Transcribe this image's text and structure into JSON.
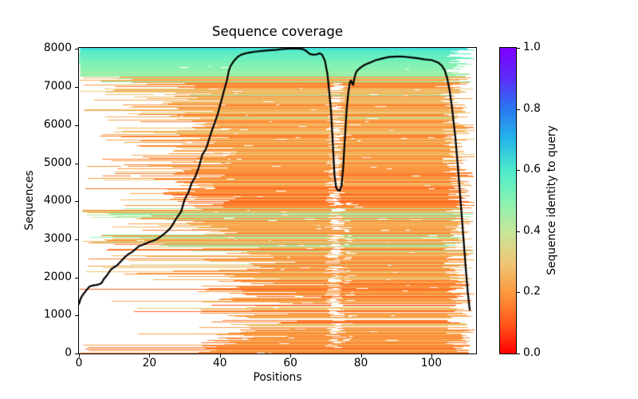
{
  "title": "Sequence coverage",
  "axes": {
    "xlabel": "Positions",
    "ylabel": "Sequences",
    "x_ticks": [
      0,
      20,
      40,
      60,
      80,
      100
    ],
    "y_ticks": [
      0,
      1000,
      2000,
      3000,
      4000,
      5000,
      6000,
      7000,
      8000
    ],
    "xlim": [
      0,
      112.7
    ],
    "ylim": [
      0,
      8030
    ]
  },
  "colorbar": {
    "label": "Sequence identity to query",
    "tick_labels": [
      "0.0",
      "0.2",
      "0.4",
      "0.6",
      "0.8",
      "1.0"
    ],
    "tick_values": [
      0.0,
      0.2,
      0.4,
      0.6,
      0.8,
      1.0
    ],
    "stops": [
      [
        0.0,
        "#ff0000"
      ],
      [
        0.1,
        "#ff5a1c"
      ],
      [
        0.2,
        "#fc9a3f"
      ],
      [
        0.3,
        "#eec878"
      ],
      [
        0.4,
        "#c6e79b"
      ],
      [
        0.5,
        "#86f3b2"
      ],
      [
        0.6,
        "#4ceacd"
      ],
      [
        0.7,
        "#24b6e9"
      ],
      [
        0.8,
        "#2a78f2"
      ],
      [
        0.9,
        "#5c2ef8"
      ],
      [
        1.0,
        "#7d00ff"
      ]
    ]
  },
  "chart_data": {
    "type": "line+heatmap",
    "description": "MSA coverage plot: horizontal sequence lines colored by identity to query, black line = number of sequences covering each position",
    "line_color": "#000000",
    "line_width": 2.2,
    "coverage_line": [
      [
        0,
        1300
      ],
      [
        0.5,
        1450
      ],
      [
        1,
        1530
      ],
      [
        2,
        1650
      ],
      [
        3,
        1760
      ],
      [
        4,
        1790
      ],
      [
        5,
        1800
      ],
      [
        6,
        1830
      ],
      [
        6.5,
        1860
      ],
      [
        7,
        1950
      ],
      [
        8,
        2060
      ],
      [
        9,
        2200
      ],
      [
        10,
        2270
      ],
      [
        11,
        2330
      ],
      [
        12,
        2430
      ],
      [
        13,
        2530
      ],
      [
        14,
        2610
      ],
      [
        15,
        2660
      ],
      [
        16,
        2740
      ],
      [
        17,
        2820
      ],
      [
        18,
        2850
      ],
      [
        19,
        2890
      ],
      [
        20,
        2930
      ],
      [
        21,
        2960
      ],
      [
        22,
        3000
      ],
      [
        23,
        3060
      ],
      [
        24,
        3130
      ],
      [
        25,
        3210
      ],
      [
        26,
        3300
      ],
      [
        27,
        3450
      ],
      [
        28,
        3600
      ],
      [
        29,
        3730
      ],
      [
        30,
        4050
      ],
      [
        31,
        4220
      ],
      [
        32,
        4480
      ],
      [
        33,
        4640
      ],
      [
        34,
        4890
      ],
      [
        35,
        5220
      ],
      [
        36,
        5370
      ],
      [
        36.5,
        5500
      ],
      [
        37,
        5650
      ],
      [
        37.5,
        5800
      ],
      [
        38,
        5930
      ],
      [
        38.5,
        6050
      ],
      [
        39,
        6190
      ],
      [
        39.5,
        6330
      ],
      [
        40,
        6500
      ],
      [
        41,
        6850
      ],
      [
        42,
        7180
      ],
      [
        42.5,
        7420
      ],
      [
        43,
        7550
      ],
      [
        44,
        7690
      ],
      [
        45,
        7790
      ],
      [
        46,
        7850
      ],
      [
        47,
        7880
      ],
      [
        48,
        7900
      ],
      [
        50,
        7930
      ],
      [
        53,
        7960
      ],
      [
        56,
        7980
      ],
      [
        58,
        8000
      ],
      [
        60,
        8010
      ],
      [
        62,
        8010
      ],
      [
        63.5,
        8000
      ],
      [
        64.5,
        7950
      ],
      [
        65.5,
        7870
      ],
      [
        66.5,
        7850
      ],
      [
        67.5,
        7860
      ],
      [
        68.3,
        7890
      ],
      [
        69,
        7850
      ],
      [
        69.8,
        7690
      ],
      [
        70.5,
        7350
      ],
      [
        71,
        6900
      ],
      [
        71.5,
        6400
      ],
      [
        72,
        5600
      ],
      [
        72.5,
        4700
      ],
      [
        73,
        4350
      ],
      [
        73.5,
        4290
      ],
      [
        74,
        4280
      ],
      [
        74.5,
        4400
      ],
      [
        75,
        4900
      ],
      [
        75.3,
        5400
      ],
      [
        75.7,
        6020
      ],
      [
        76,
        6450
      ],
      [
        76.5,
        6900
      ],
      [
        76.9,
        7130
      ],
      [
        77.2,
        7170
      ],
      [
        77.5,
        7100
      ],
      [
        77.8,
        7060
      ],
      [
        78.2,
        7250
      ],
      [
        78.6,
        7380
      ],
      [
        79,
        7440
      ],
      [
        80,
        7520
      ],
      [
        81,
        7580
      ],
      [
        82,
        7620
      ],
      [
        83,
        7660
      ],
      [
        84,
        7700
      ],
      [
        86,
        7750
      ],
      [
        88,
        7790
      ],
      [
        90,
        7800
      ],
      [
        92,
        7800
      ],
      [
        94,
        7780
      ],
      [
        96,
        7760
      ],
      [
        98,
        7730
      ],
      [
        100,
        7710
      ],
      [
        101,
        7680
      ],
      [
        102,
        7640
      ],
      [
        103,
        7560
      ],
      [
        103.8,
        7440
      ],
      [
        104.5,
        7230
      ],
      [
        105.2,
        6900
      ],
      [
        105.8,
        6500
      ],
      [
        106.3,
        6100
      ],
      [
        106.8,
        5700
      ],
      [
        107.3,
        5150
      ],
      [
        107.8,
        4600
      ],
      [
        108.3,
        4000
      ],
      [
        108.8,
        3400
      ],
      [
        109.3,
        2800
      ],
      [
        109.8,
        2200
      ],
      [
        110.3,
        1650
      ],
      [
        110.7,
        1300
      ],
      [
        110.9,
        1150
      ]
    ],
    "bands": [
      {
        "seq": [
          0,
          230
        ],
        "density": 1.0,
        "starts": [
          [
            0.25,
            0,
            4
          ],
          [
            0.75,
            33,
            40
          ]
        ],
        "identity": [
          [
            0.6,
            0.1,
            0.18
          ],
          [
            0.4,
            0.18,
            0.24
          ]
        ],
        "end": [
          106,
          112.5
        ],
        "gap_prob": 0.25
      },
      {
        "seq": [
          230,
          1900
        ],
        "density": 0.92,
        "starts": [
          [
            0.12,
            0,
            25
          ],
          [
            0.55,
            33,
            50
          ],
          [
            0.33,
            45,
            70
          ]
        ],
        "identity": [
          [
            0.75,
            0.14,
            0.26
          ],
          [
            0.2,
            0.26,
            0.33
          ],
          [
            0.05,
            0.08,
            0.13
          ]
        ],
        "end": [
          104,
          112.5
        ],
        "gap_prob": 0.35
      },
      {
        "seq": [
          1900,
          2800
        ],
        "density": 0.95,
        "starts": [
          [
            0.3,
            0,
            28
          ],
          [
            0.5,
            25,
            50
          ],
          [
            0.2,
            45,
            65
          ]
        ],
        "identity": [
          [
            0.7,
            0.14,
            0.26
          ],
          [
            0.25,
            0.26,
            0.34
          ],
          [
            0.05,
            0.36,
            0.46
          ]
        ],
        "end": [
          103,
          112.5
        ],
        "gap_prob": 0.35
      },
      {
        "seq": [
          2800,
          3070
        ],
        "density": 1.0,
        "starts": [
          [
            0.55,
            0,
            12
          ],
          [
            0.45,
            10,
            40
          ]
        ],
        "identity": [
          [
            0.45,
            0.38,
            0.5
          ],
          [
            0.55,
            0.15,
            0.28
          ]
        ],
        "end": [
          103,
          112.5
        ],
        "gap_prob": 0.3
      },
      {
        "seq": [
          3070,
          3560
        ],
        "density": 1.0,
        "starts": [
          [
            0.35,
            0,
            18
          ],
          [
            0.65,
            15,
            45
          ]
        ],
        "identity": [
          [
            0.82,
            0.15,
            0.28
          ],
          [
            0.18,
            0.36,
            0.48
          ]
        ],
        "end": [
          104,
          112.5
        ],
        "gap_prob": 0.3
      },
      {
        "seq": [
          3560,
          3820
        ],
        "density": 1.0,
        "starts": [
          [
            0.6,
            0,
            12
          ],
          [
            0.4,
            10,
            40
          ]
        ],
        "identity": [
          [
            0.55,
            0.4,
            0.52
          ],
          [
            0.45,
            0.16,
            0.3
          ]
        ],
        "end": [
          104,
          112.5
        ],
        "gap_prob": 0.3
      },
      {
        "seq": [
          3820,
          4400
        ],
        "density": 1.0,
        "starts": [
          [
            0.2,
            0,
            18
          ],
          [
            0.8,
            22,
            45
          ]
        ],
        "identity": [
          [
            0.55,
            0.1,
            0.2
          ],
          [
            0.45,
            0.18,
            0.28
          ]
        ],
        "end": [
          104,
          112.5
        ],
        "gap_prob": 0.35
      },
      {
        "seq": [
          4400,
          6100
        ],
        "density": 1.0,
        "starts": [
          [
            0.3,
            2,
            30
          ],
          [
            0.7,
            25,
            45
          ]
        ],
        "identity": [
          [
            0.7,
            0.14,
            0.26
          ],
          [
            0.3,
            0.24,
            0.33
          ]
        ],
        "end": [
          103,
          112.5
        ],
        "gap_prob": 0.4
      },
      {
        "seq": [
          6100,
          6900
        ],
        "density": 1.0,
        "starts": [
          [
            0.55,
            0,
            28
          ],
          [
            0.45,
            25,
            42
          ]
        ],
        "identity": [
          [
            0.65,
            0.15,
            0.27
          ],
          [
            0.3,
            0.26,
            0.33
          ],
          [
            0.05,
            0.38,
            0.48
          ]
        ],
        "end": [
          102,
          112.5
        ],
        "gap_prob": 0.35
      },
      {
        "seq": [
          6900,
          7130
        ],
        "density": 1.0,
        "starts": [
          [
            0.7,
            0,
            30
          ],
          [
            0.3,
            28,
            38
          ]
        ],
        "identity": [
          [
            0.85,
            0.16,
            0.28
          ],
          [
            0.15,
            0.28,
            0.34
          ]
        ],
        "end": [
          101,
          112.5
        ],
        "gap_prob": 0.3
      },
      {
        "seq": [
          7130,
          7270
        ],
        "density": 1.0,
        "starts": [
          [
            0.8,
            0,
            10
          ],
          [
            0.2,
            8,
            25
          ]
        ],
        "identity": [
          [
            0.5,
            0.4,
            0.5
          ],
          [
            0.5,
            0.18,
            0.3
          ]
        ],
        "end": [
          102,
          112.5
        ],
        "gap_prob": 0.2
      },
      {
        "seq": [
          7270,
          7960
        ],
        "density": 1.0,
        "starts": [
          [
            1,
            0,
            0.5
          ]
        ],
        "identity_gradient": {
          "range": [
            0.45,
            0.58
          ],
          "jitter": 0.025
        },
        "end": [
          104,
          112.5
        ],
        "gap_prob": 0.12
      },
      {
        "seq": [
          7960,
          8030
        ],
        "density": 1.0,
        "starts": [
          [
            1,
            0,
            0.5
          ]
        ],
        "identity": [
          [
            1,
            0.6,
            0.67
          ]
        ],
        "end": [
          106,
          112.5
        ],
        "gap_prob": 0.05
      }
    ],
    "gap_columns": [
      {
        "seq": [
          120,
          7100
        ],
        "prob": 0.55,
        "center": 72.8,
        "center_jitter": 1.2,
        "halfwidth": [
          0.8,
          2.2
        ]
      },
      {
        "seq": [
          150,
          4000
        ],
        "prob": 0.18,
        "center": 76.8,
        "center_jitter": 1.0,
        "halfwidth": [
          0.5,
          1.4
        ]
      }
    ]
  }
}
